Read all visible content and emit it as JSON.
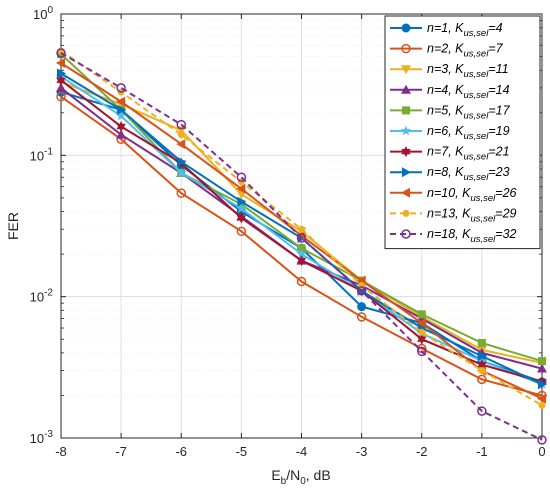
{
  "chart_data": {
    "type": "line",
    "title": "",
    "xlabel": "E_b/N_0, dB",
    "ylabel": "FER",
    "x": [
      -8,
      -7,
      -6,
      -5,
      -4,
      -3,
      -2,
      -1,
      0
    ],
    "xlim": [
      -8,
      0
    ],
    "ylim": [
      0.001,
      1
    ],
    "yscale": "log",
    "xticks": [
      "-8",
      "-7",
      "-6",
      "-5",
      "-4",
      "-3",
      "-2",
      "-1",
      "0"
    ],
    "yticks": [
      {
        "base": "10",
        "exp": "-3"
      },
      {
        "base": "10",
        "exp": "-2"
      },
      {
        "base": "10",
        "exp": "-1"
      },
      {
        "base": "10",
        "exp": "0"
      }
    ],
    "grid": true,
    "legend_position": "top-right",
    "series": [
      {
        "name": "n=1, K_us,sel=4",
        "n": "1",
        "k": "4",
        "color": "#0072BD",
        "marker": "circle-filled",
        "dash": false,
        "values": [
          0.28,
          0.21,
          0.085,
          0.04,
          0.022,
          0.0085,
          0.0065,
          0.0035,
          0.0025
        ]
      },
      {
        "name": "n=2, K_us,sel=7",
        "n": "2",
        "k": "7",
        "color": "#D95319",
        "marker": "circle-open",
        "dash": false,
        "values": [
          0.26,
          0.13,
          0.054,
          0.029,
          0.0128,
          0.0072,
          0.0043,
          0.0026,
          0.002
        ]
      },
      {
        "name": "n=3, K_us,sel=11",
        "n": "3",
        "k": "11",
        "color": "#EDB120",
        "marker": "triangle-down",
        "dash": false,
        "values": [
          0.33,
          0.23,
          0.15,
          0.053,
          0.029,
          0.013,
          0.0072,
          0.0042,
          0.0034
        ]
      },
      {
        "name": "n=4, K_us,sel=14",
        "n": "4",
        "k": "14",
        "color": "#7E2F8E",
        "marker": "triangle-up",
        "dash": false,
        "values": [
          0.3,
          0.14,
          0.075,
          0.037,
          0.018,
          0.012,
          0.007,
          0.004,
          0.0031
        ]
      },
      {
        "name": "n=5, K_us,sel=17",
        "n": "5",
        "k": "17",
        "color": "#77AC30",
        "marker": "square",
        "dash": false,
        "values": [
          0.52,
          0.21,
          0.075,
          0.045,
          0.022,
          0.013,
          0.0075,
          0.0047,
          0.0035
        ]
      },
      {
        "name": "n=6, K_us,sel=19",
        "n": "6",
        "k": "19",
        "color": "#4DBEEE",
        "marker": "star",
        "dash": false,
        "values": [
          0.36,
          0.19,
          0.075,
          0.042,
          0.02,
          0.011,
          0.0055,
          0.0035,
          0.0024
        ]
      },
      {
        "name": "n=7, K_us,sel=21",
        "n": "7",
        "k": "21",
        "color": "#A2142F",
        "marker": "hexagram",
        "dash": false,
        "values": [
          0.34,
          0.16,
          0.088,
          0.036,
          0.018,
          0.011,
          0.005,
          0.0033,
          0.0025
        ]
      },
      {
        "name": "n=8, K_us,sel=23",
        "n": "8",
        "k": "23",
        "color": "#0072BD",
        "marker": "triangle-right",
        "dash": false,
        "values": [
          0.38,
          0.21,
          0.09,
          0.047,
          0.026,
          0.011,
          0.006,
          0.0038,
          0.0024
        ]
      },
      {
        "name": "n=10, K_us,sel=26",
        "n": "10",
        "k": "26",
        "color": "#D95319",
        "marker": "triangle-left",
        "dash": false,
        "values": [
          0.45,
          0.24,
          0.12,
          0.058,
          0.027,
          0.013,
          0.0065,
          0.003,
          0.0019
        ]
      },
      {
        "name": "n=13, K_us,sel=29",
        "n": "13",
        "k": "29",
        "color": "#EDB120",
        "marker": "dot",
        "dash": true,
        "values": [
          0.55,
          0.28,
          0.14,
          0.065,
          0.03,
          0.012,
          0.0056,
          0.003,
          0.0017
        ]
      },
      {
        "name": "n=18, K_us,sel=32",
        "n": "18",
        "k": "32",
        "color": "#7E2F8E",
        "marker": "circle-open",
        "dash": true,
        "values": [
          0.53,
          0.3,
          0.165,
          0.07,
          0.026,
          0.011,
          0.0041,
          0.00155,
          0.00097
        ]
      }
    ]
  }
}
